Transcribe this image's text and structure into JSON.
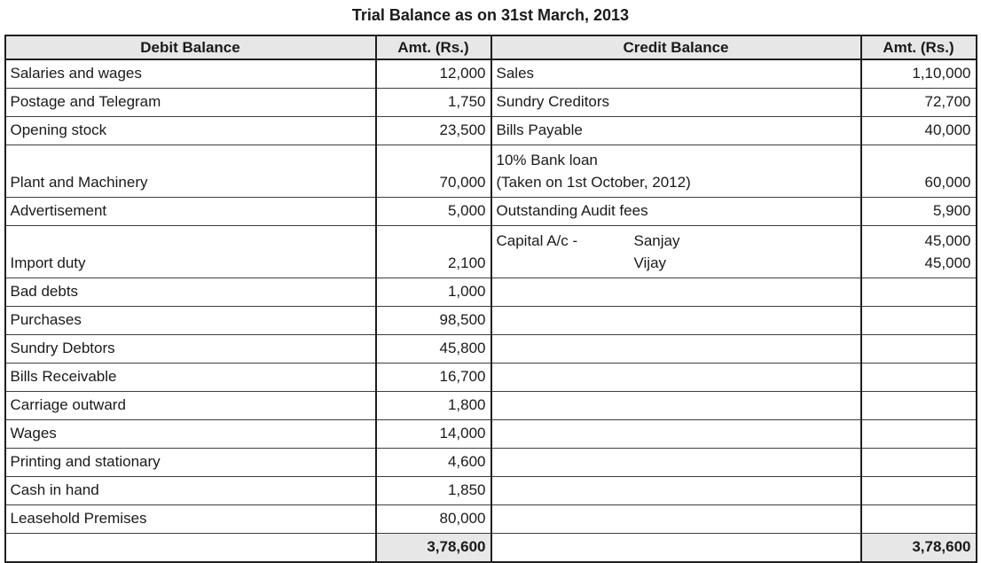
{
  "title": "Trial Balance as on 31st March, 2013",
  "colors": {
    "header_bg": "#e7e7e7",
    "total_bg": "#e7e7e7",
    "border_dark": "#1f1f1f",
    "border_thin": "#3d3d3d",
    "text": "#1a1a1a"
  },
  "table": {
    "headers": [
      "Debit Balance",
      "Amt. (Rs.)",
      "Credit Balance",
      "Amt. (Rs.)"
    ],
    "rows": [
      {
        "debit_label": [
          "Salaries and wages"
        ],
        "debit_amount": [
          "12,000"
        ],
        "credit_label": [
          "Sales"
        ],
        "credit_amount": [
          "1,10,000"
        ]
      },
      {
        "debit_label": [
          "Postage and Telegram"
        ],
        "debit_amount": [
          "1,750"
        ],
        "credit_label": [
          "Sundry Creditors"
        ],
        "credit_amount": [
          "72,700"
        ]
      },
      {
        "debit_label": [
          "Opening stock"
        ],
        "debit_amount": [
          "23,500"
        ],
        "credit_label": [
          "Bills Payable"
        ],
        "credit_amount": [
          "40,000"
        ]
      },
      {
        "tall": true,
        "debit_label": [
          "Plant and Machinery"
        ],
        "debit_amount": [
          "70,000"
        ],
        "credit_label": [
          "10% Bank loan",
          "(Taken on 1st October, 2012)"
        ],
        "credit_amount": [
          "60,000"
        ]
      },
      {
        "debit_label": [
          "Advertisement"
        ],
        "debit_amount": [
          "5,000"
        ],
        "credit_label": [
          "Outstanding Audit fees"
        ],
        "credit_amount": [
          "5,900"
        ]
      },
      {
        "tall": true,
        "debit_label": [
          "Import duty"
        ],
        "debit_amount": [
          "2,100"
        ],
        "credit_label": [
          {
            "main": "Capital A/c -",
            "sub": "Sanjay"
          },
          {
            "main": "",
            "sub": "Vijay"
          }
        ],
        "credit_amount": [
          "45,000",
          "45,000"
        ]
      },
      {
        "debit_label": [
          "Bad debts"
        ],
        "debit_amount": [
          "1,000"
        ],
        "credit_label": [],
        "credit_amount": []
      },
      {
        "debit_label": [
          "Purchases"
        ],
        "debit_amount": [
          "98,500"
        ],
        "credit_label": [],
        "credit_amount": []
      },
      {
        "debit_label": [
          "Sundry Debtors"
        ],
        "debit_amount": [
          "45,800"
        ],
        "credit_label": [],
        "credit_amount": []
      },
      {
        "debit_label": [
          "Bills Receivable"
        ],
        "debit_amount": [
          "16,700"
        ],
        "credit_label": [],
        "credit_amount": []
      },
      {
        "debit_label": [
          "Carriage outward"
        ],
        "debit_amount": [
          "1,800"
        ],
        "credit_label": [],
        "credit_amount": []
      },
      {
        "debit_label": [
          "Wages"
        ],
        "debit_amount": [
          "14,000"
        ],
        "credit_label": [],
        "credit_amount": []
      },
      {
        "debit_label": [
          "Printing and stationary"
        ],
        "debit_amount": [
          "4,600"
        ],
        "credit_label": [],
        "credit_amount": []
      },
      {
        "debit_label": [
          "Cash in hand"
        ],
        "debit_amount": [
          "1,850"
        ],
        "credit_label": [],
        "credit_amount": []
      },
      {
        "debit_label": [
          "Leasehold Premises"
        ],
        "debit_amount": [
          "80,000"
        ],
        "credit_label": [],
        "credit_amount": []
      },
      {
        "total": true,
        "debit_label": [],
        "debit_amount": [
          "3,78,600"
        ],
        "credit_label": [],
        "credit_amount": [
          "3,78,600"
        ]
      }
    ]
  }
}
